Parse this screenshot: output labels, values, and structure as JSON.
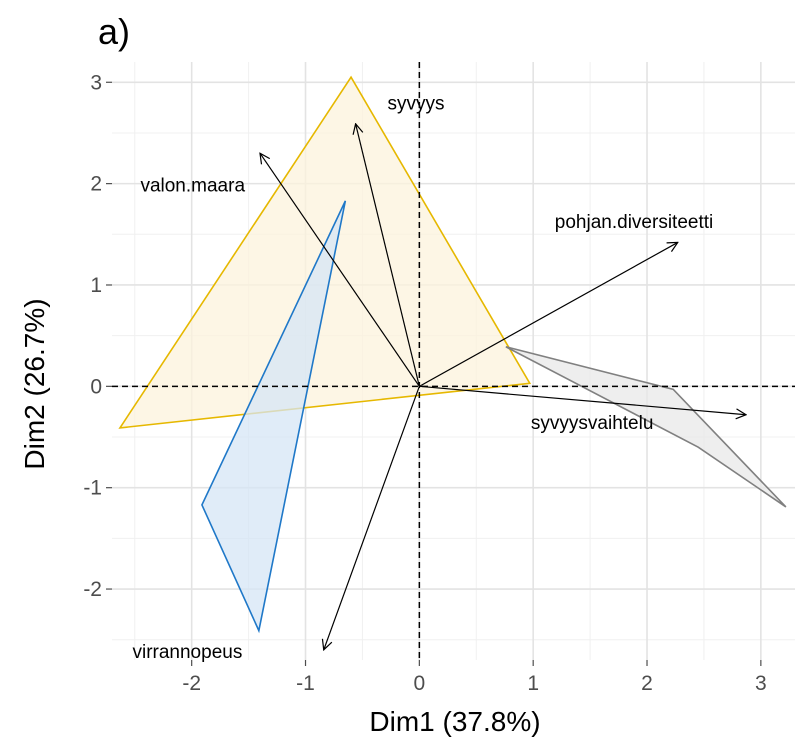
{
  "chart_data": {
    "type": "scatter",
    "panel_label": "a)",
    "xlabel": "Dim1 (37.8%)",
    "ylabel": "Dim2 (26.7%)",
    "xlim": [
      -2.7,
      3.3
    ],
    "ylim": [
      -2.7,
      3.2
    ],
    "x_ticks": [
      -2,
      -1,
      0,
      1,
      2,
      3
    ],
    "y_ticks": [
      -2,
      -1,
      0,
      1,
      2,
      3
    ],
    "grid": true,
    "reference_lines": {
      "x": 0,
      "y": 0,
      "style": "dashed"
    },
    "groups": [
      {
        "color": "#E6B800",
        "fill": "#FCF3DC",
        "hull": [
          [
            -0.6,
            3.05
          ],
          [
            0.97,
            0.03
          ],
          [
            -2.63,
            -0.41
          ]
        ]
      },
      {
        "color": "#1F78C8",
        "fill": "#D6E6F5",
        "hull": [
          [
            -0.65,
            1.83
          ],
          [
            -1.41,
            -2.41
          ],
          [
            -1.91,
            -1.17
          ]
        ]
      },
      {
        "color": "#808080",
        "fill": "#E8E8E8",
        "hull": [
          [
            0.76,
            0.39
          ],
          [
            2.23,
            -0.03
          ],
          [
            3.22,
            -1.19
          ],
          [
            2.45,
            -0.6
          ]
        ]
      }
    ],
    "variables": [
      {
        "name": "syvyys",
        "x": -0.56,
        "y": 2.59,
        "label_pos": [
          -0.28,
          2.8
        ]
      },
      {
        "name": "valon.maara",
        "x": -1.4,
        "y": 2.3,
        "label_pos": [
          -2.45,
          1.99
        ]
      },
      {
        "name": "pohjan.diversiteetti",
        "x": 2.27,
        "y": 1.42,
        "label_pos": [
          1.19,
          1.63
        ]
      },
      {
        "name": "syvyysvaihtelu",
        "x": 2.87,
        "y": -0.28,
        "label_pos": [
          0.98,
          -0.35
        ]
      },
      {
        "name": "virrannopeus",
        "x": -0.84,
        "y": -2.6,
        "label_pos": [
          -2.52,
          -2.61
        ]
      }
    ]
  }
}
